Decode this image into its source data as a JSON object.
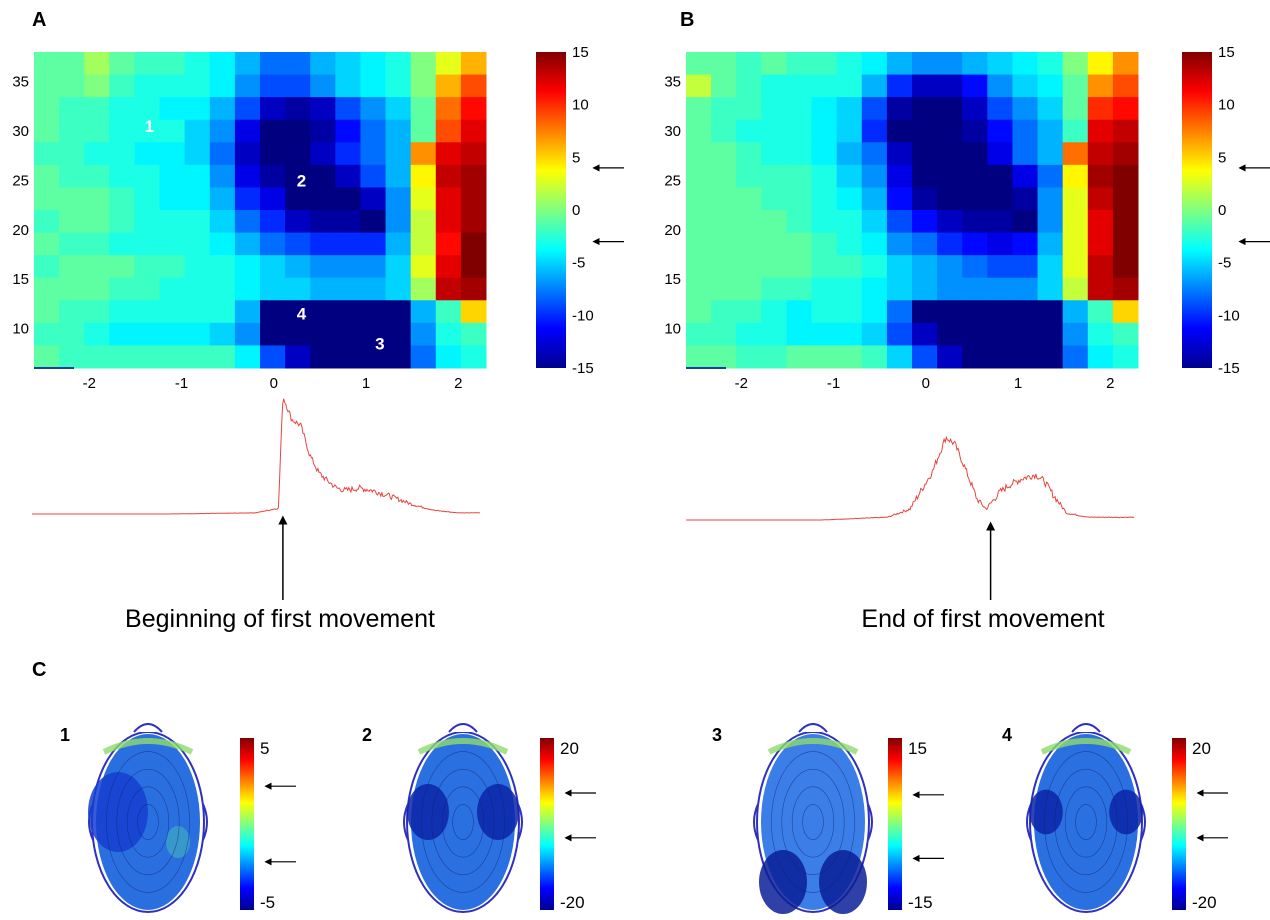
{
  "panels": {
    "A": "A",
    "B": "B",
    "C": "C"
  },
  "chart_data": [
    {
      "type": "heatmap",
      "panel": "A",
      "x_ticks": [
        "-2",
        "-1",
        "0",
        "1",
        "2"
      ],
      "y_ticks": [
        "35",
        "30",
        "25",
        "20",
        "15",
        "10"
      ],
      "xlim": [
        -2.6,
        2.3
      ],
      "ylim": [
        6,
        38
      ],
      "colorbar": {
        "ticks": [
          "15",
          "10",
          "5",
          "0",
          "-5",
          "-10",
          "-15"
        ],
        "range": [
          -15,
          15
        ]
      },
      "colorbar_arrows": [
        4,
        -3
      ],
      "region_labels": [
        {
          "text": "1",
          "x": -1.35,
          "y": 30.5
        },
        {
          "text": "2",
          "x": 0.3,
          "y": 25.0
        },
        {
          "text": "4",
          "x": 0.3,
          "y": 11.5
        },
        {
          "text": "3",
          "x": 1.15,
          "y": 8.5
        }
      ],
      "grid": [
        [
          -1,
          -1,
          1,
          -1,
          -2,
          -2,
          -3,
          -4,
          -6,
          -8,
          -8,
          -6,
          -5,
          -4,
          -3,
          0,
          3,
          6
        ],
        [
          -1,
          -1,
          0,
          -2,
          -3,
          -3,
          -3,
          -4,
          -7,
          -9,
          -9,
          -7,
          -5,
          -4,
          -3,
          0,
          6,
          9
        ],
        [
          -1,
          -2,
          -2,
          -3,
          -3,
          -4,
          -4,
          -6,
          -9,
          -13,
          -14,
          -13,
          -9,
          -7,
          -5,
          -1,
          8,
          11
        ],
        [
          -1,
          -2,
          -2,
          -3,
          -3,
          -3,
          -5,
          -7,
          -12,
          -15,
          -15,
          -14,
          -11,
          -8,
          -6,
          -1,
          9,
          12
        ],
        [
          -2,
          -2,
          -3,
          -3,
          -4,
          -4,
          -5,
          -8,
          -13,
          -15,
          -15,
          -13,
          -10,
          -8,
          -6,
          7,
          12,
          13
        ],
        [
          -1,
          -2,
          -2,
          -3,
          -3,
          -4,
          -4,
          -7,
          -12,
          -14,
          -15,
          -15,
          -13,
          -9,
          -6,
          4,
          13,
          14
        ],
        [
          -1,
          -1,
          -1,
          -2,
          -3,
          -4,
          -4,
          -6,
          -10,
          -12,
          -15,
          -15,
          -15,
          -13,
          -7,
          3,
          12,
          14
        ],
        [
          -2,
          -1,
          -1,
          -2,
          -3,
          -3,
          -3,
          -5,
          -8,
          -10,
          -13,
          -14,
          -14,
          -15,
          -7,
          2,
          12,
          14
        ],
        [
          -1,
          -2,
          -2,
          -3,
          -3,
          -3,
          -3,
          -4,
          -6,
          -8,
          -9,
          -10,
          -10,
          -10,
          -6,
          2,
          11,
          15
        ],
        [
          -2,
          -1,
          -1,
          -1,
          -2,
          -2,
          -3,
          -3,
          -4,
          -5,
          -6,
          -7,
          -7,
          -7,
          -5,
          3,
          12,
          15
        ],
        [
          -1,
          -1,
          -1,
          -2,
          -2,
          -3,
          -3,
          -3,
          -4,
          -5,
          -5,
          -6,
          -6,
          -6,
          -5,
          1,
          13,
          14
        ],
        [
          -1,
          -2,
          -2,
          -3,
          -3,
          -3,
          -3,
          -3,
          -6,
          -15,
          -15,
          -15,
          -15,
          -15,
          -15,
          -6,
          -2,
          5
        ],
        [
          -2,
          -2,
          -3,
          -4,
          -4,
          -4,
          -4,
          -5,
          -7,
          -15,
          -15,
          -15,
          -15,
          -15,
          -15,
          -7,
          -3,
          -2
        ],
        [
          -1,
          -2,
          -2,
          -2,
          -2,
          -2,
          -2,
          -2,
          -4,
          -9,
          -13,
          -15,
          -15,
          -15,
          -15,
          -8,
          -4,
          -3
        ]
      ]
    },
    {
      "type": "heatmap",
      "panel": "B",
      "x_ticks": [
        "-2",
        "-1",
        "0",
        "1",
        "2"
      ],
      "y_ticks": [
        "35",
        "30",
        "25",
        "20",
        "15",
        "10"
      ],
      "xlim": [
        -2.6,
        2.3
      ],
      "ylim": [
        6,
        38
      ],
      "colorbar": {
        "ticks": [
          "15",
          "10",
          "5",
          "0",
          "-5",
          "-10",
          "-15"
        ],
        "range": [
          -15,
          15
        ]
      },
      "colorbar_arrows": [
        4,
        -3
      ],
      "region_labels": [],
      "grid": [
        [
          -1,
          -1,
          -2,
          -1,
          -2,
          -2,
          -3,
          -4,
          -6,
          -7,
          -7,
          -6,
          -5,
          -4,
          -3,
          0,
          4,
          7
        ],
        [
          2,
          -1,
          -2,
          -3,
          -3,
          -3,
          -3,
          -6,
          -10,
          -13,
          -13,
          -11,
          -7,
          -5,
          -4,
          -1,
          7,
          9
        ],
        [
          -1,
          -2,
          -2,
          -3,
          -3,
          -4,
          -5,
          -9,
          -14,
          -15,
          -15,
          -13,
          -9,
          -7,
          -5,
          -1,
          10,
          11
        ],
        [
          -1,
          -2,
          -3,
          -3,
          -3,
          -4,
          -5,
          -10,
          -15,
          -15,
          -15,
          -14,
          -11,
          -8,
          -6,
          -2,
          12,
          13
        ],
        [
          -1,
          -1,
          -2,
          -3,
          -3,
          -4,
          -6,
          -8,
          -13,
          -15,
          -15,
          -15,
          -12,
          -8,
          -6,
          8,
          13,
          14
        ],
        [
          -1,
          -1,
          -2,
          -2,
          -2,
          -3,
          -5,
          -7,
          -12,
          -15,
          -15,
          -15,
          -15,
          -12,
          -8,
          4,
          14,
          15
        ],
        [
          -1,
          -1,
          -1,
          -2,
          -2,
          -3,
          -4,
          -6,
          -11,
          -14,
          -15,
          -15,
          -15,
          -14,
          -7,
          3,
          13,
          15
        ],
        [
          -1,
          -1,
          -1,
          -1,
          -2,
          -3,
          -3,
          -5,
          -9,
          -11,
          -13,
          -14,
          -14,
          -15,
          -7,
          3,
          12,
          15
        ],
        [
          -1,
          -1,
          -1,
          -1,
          -1,
          -2,
          -3,
          -4,
          -7,
          -8,
          -10,
          -11,
          -12,
          -11,
          -6,
          3,
          12,
          15
        ],
        [
          -1,
          -1,
          -1,
          -1,
          -1,
          -2,
          -2,
          -3,
          -5,
          -6,
          -7,
          -8,
          -9,
          -9,
          -5,
          3,
          13,
          15
        ],
        [
          -1,
          -1,
          -1,
          -2,
          -2,
          -3,
          -3,
          -4,
          -5,
          -6,
          -7,
          -7,
          -7,
          -7,
          -5,
          2,
          13,
          14
        ],
        [
          -1,
          -2,
          -2,
          -3,
          -4,
          -3,
          -3,
          -4,
          -8,
          -15,
          -15,
          -15,
          -15,
          -15,
          -15,
          -6,
          -2,
          5
        ],
        [
          -2,
          -2,
          -3,
          -3,
          -4,
          -4,
          -4,
          -5,
          -9,
          -13,
          -15,
          -15,
          -15,
          -15,
          -15,
          -7,
          -3,
          -2
        ],
        [
          -1,
          -1,
          -2,
          -2,
          -1,
          -1,
          -1,
          -2,
          -5,
          -9,
          -13,
          -15,
          -15,
          -15,
          -15,
          -8,
          -4,
          -3
        ]
      ]
    },
    {
      "type": "line",
      "panel": "A-trace",
      "caption": "Beginning of first movement",
      "x": [
        0,
        0.3,
        0.5,
        0.55,
        0.56,
        0.58,
        0.6,
        0.62,
        0.64,
        0.66,
        0.68,
        0.7,
        0.73,
        0.76,
        0.8,
        0.85,
        0.9,
        0.95,
        1.0
      ],
      "y": [
        0,
        0,
        0.01,
        0.05,
        1.0,
        0.8,
        0.75,
        0.5,
        0.35,
        0.28,
        0.22,
        0.2,
        0.22,
        0.2,
        0.15,
        0.08,
        0.03,
        0.01,
        0.01
      ],
      "arrow_at_x": 0.56
    },
    {
      "type": "line",
      "panel": "B-trace",
      "caption": "End of first movement",
      "x": [
        0,
        0.3,
        0.45,
        0.5,
        0.55,
        0.58,
        0.6,
        0.62,
        0.65,
        0.67,
        0.68,
        0.7,
        0.72,
        0.75,
        0.78,
        0.8,
        0.82,
        0.85,
        0.9,
        1.0
      ],
      "y": [
        0,
        0,
        0.02,
        0.08,
        0.35,
        0.6,
        0.55,
        0.4,
        0.15,
        0.08,
        0.12,
        0.2,
        0.25,
        0.3,
        0.33,
        0.28,
        0.18,
        0.05,
        0.02,
        0.02
      ],
      "arrow_at_x": 0.68
    }
  ],
  "head_maps": [
    {
      "label": "1",
      "cb_top": "5",
      "cb_bottom": "-5",
      "arrows_frac": [
        0.28,
        0.72
      ]
    },
    {
      "label": "2",
      "cb_top": "20",
      "cb_bottom": "-20",
      "arrows_frac": [
        0.32,
        0.58
      ]
    },
    {
      "label": "3",
      "cb_top": "15",
      "cb_bottom": "-15",
      "arrows_frac": [
        0.33,
        0.7
      ]
    },
    {
      "label": "4",
      "cb_top": "20",
      "cb_bottom": "-20",
      "arrows_frac": [
        0.32,
        0.58
      ]
    }
  ]
}
